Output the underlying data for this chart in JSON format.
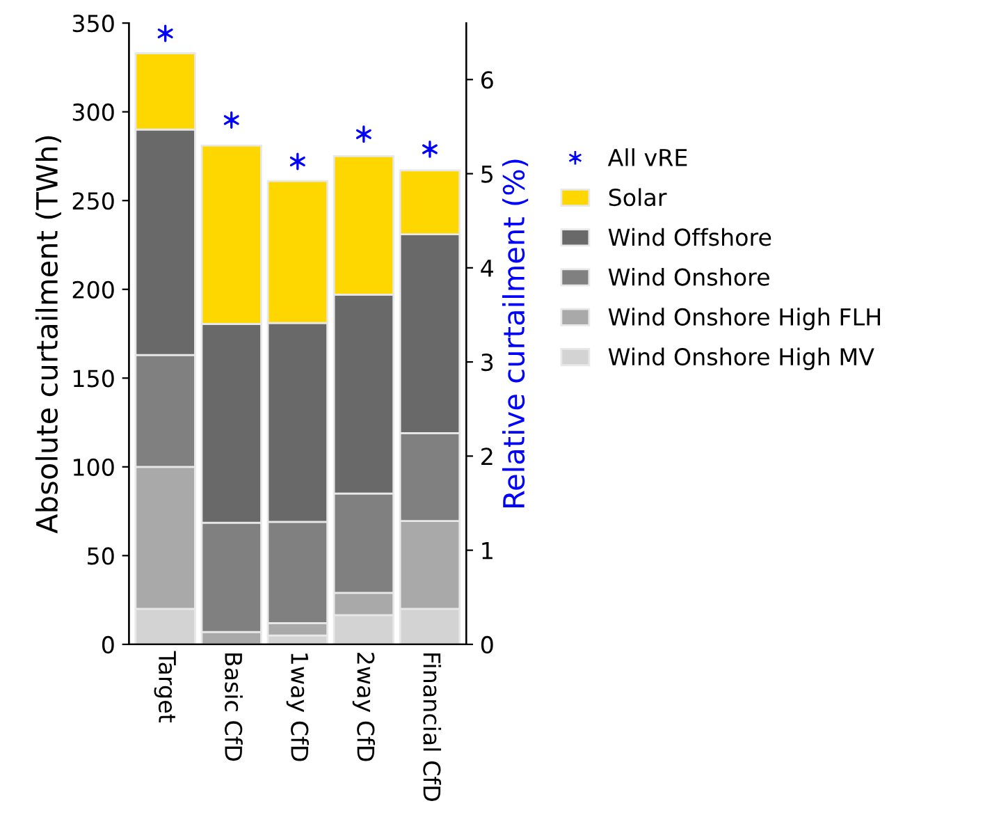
{
  "chart_data": {
    "type": "bar",
    "stacked": true,
    "ylabel": "Absolute curtailment (TWh)",
    "y2label": "Relative curtailment (%)",
    "categories": [
      "Target",
      "Basic CfD",
      "1way CfD",
      "2way CfD",
      "Financial CfD"
    ],
    "series": [
      {
        "name": "Wind Onshore High MV",
        "color": "#d3d3d3",
        "values": [
          20,
          0,
          5,
          16.5,
          20
        ]
      },
      {
        "name": "Wind Onshore High FLH",
        "color": "#a9a9a9",
        "values": [
          80,
          7,
          7,
          12.5,
          49.5
        ]
      },
      {
        "name": "Wind Onshore",
        "color": "#808080",
        "values": [
          63,
          61.5,
          57,
          56,
          49.5
        ]
      },
      {
        "name": "Wind Offshore",
        "color": "#696969",
        "values": [
          127,
          112,
          112,
          112,
          112
        ]
      },
      {
        "name": "Solar",
        "color": "#ffd700",
        "values": [
          43,
          100.5,
          80,
          78,
          36
        ]
      },
      {
        "name": "All vRE",
        "type": "scatter",
        "axis": "y2",
        "marker": "cross",
        "color": "#0000ff",
        "values": [
          6.49,
          5.57,
          5.13,
          5.42,
          5.26
        ]
      }
    ],
    "ylim": [
      0,
      350
    ],
    "yticks": [
      0,
      50,
      100,
      150,
      200,
      250,
      300,
      350
    ],
    "y2lim": [
      0,
      6.6
    ],
    "y2ticks": [
      0,
      1,
      2,
      3,
      4,
      5,
      6
    ],
    "grid": false,
    "legend": "right"
  }
}
